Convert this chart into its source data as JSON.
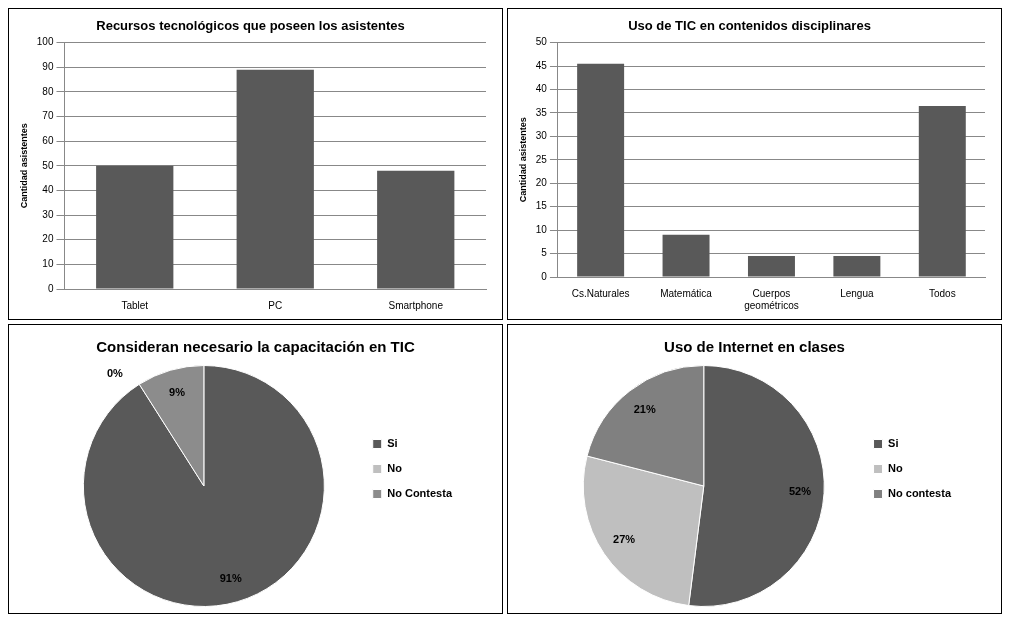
{
  "chart_data": [
    {
      "type": "bar",
      "title": "Recursos tecnológicos que poseen los asistentes",
      "ylabel": "Cantidad asistentes",
      "categories": [
        "Tablet",
        "PC",
        "Smartphone"
      ],
      "values": [
        50,
        89,
        48
      ],
      "color": "#595959",
      "ylim": [
        0,
        100
      ],
      "yticks": [
        0,
        10,
        20,
        30,
        40,
        50,
        60,
        70,
        80,
        90,
        100
      ],
      "grid": "y",
      "legend": false
    },
    {
      "type": "bar",
      "title": "Uso de TIC en contenidos disciplinares",
      "ylabel": "Cantidad asistentes",
      "categories": [
        "Cs.Naturales",
        "Matemática",
        "Cuerpos geométricos",
        "Lengua",
        "Todos"
      ],
      "values": [
        45.5,
        9,
        4.5,
        4.5,
        36.5
      ],
      "color": "#595959",
      "ylim": [
        0,
        50
      ],
      "yticks": [
        0,
        5,
        10,
        15,
        20,
        25,
        30,
        35,
        40,
        45,
        50
      ],
      "grid": "y",
      "legend": false
    },
    {
      "type": "pie",
      "title": "Consideran necesario la capacitación en TIC",
      "categories": [
        "Si",
        "No",
        "No Contesta"
      ],
      "values": [
        91,
        0,
        9
      ],
      "colors": [
        "#595959",
        "#bfbfbf",
        "#8c8c8c"
      ],
      "value_labels": [
        "91%",
        "0%",
        "9%"
      ],
      "legend": "right"
    },
    {
      "type": "pie",
      "title": "Uso de Internet en clases",
      "categories": [
        "Si",
        "No",
        "No contesta"
      ],
      "values": [
        52,
        27,
        21
      ],
      "colors": [
        "#595959",
        "#bfbfbf",
        "#808080"
      ],
      "value_labels": [
        "52%",
        "27%",
        "21%"
      ],
      "legend": "right"
    }
  ]
}
